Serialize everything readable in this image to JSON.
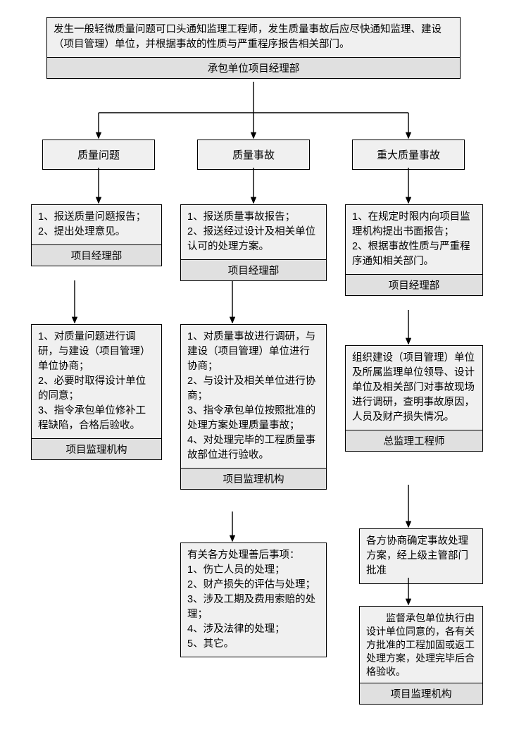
{
  "colors": {
    "box_bg": "#f0f0f0",
    "footer_bg": "#e0e0e0",
    "border": "#000000",
    "text": "#000000",
    "page_bg": "#ffffff"
  },
  "font": {
    "family": "Microsoft YaHei / SimSun",
    "size_pt": 11
  },
  "root": {
    "text": "发生一般轻微质量问题可口头通知监理工程师，发生质量事故后应尽快通知监理、建设（项目管理）单位，并根据事故的性质与严重程序报告相关部门。",
    "footer": "承包单位项目经理部"
  },
  "branches": {
    "left": {
      "title": "质量问题"
    },
    "mid": {
      "title": "质量事故"
    },
    "right": {
      "title": "重大质量事故"
    }
  },
  "left": {
    "step1": {
      "text": "1、报送质量问题报告；\n2、提出处理意见。",
      "footer": "项目经理部"
    },
    "step2": {
      "text": "1、对质量问题进行调研，与建设（项目管理）单位协商；\n2、必要时取得设计单位的同意；\n3、指令承包单位修补工程缺陷，合格后验收。",
      "footer": "项目监理机构"
    }
  },
  "mid": {
    "step1": {
      "text": "1、报送质量事故报告；\n2、报送经过设计及相关单位认可的处理方案。",
      "footer": "项目经理部"
    },
    "step2": {
      "text": "1、对质量事故进行调研，与建设（项目管理）单位进行协商；\n2、与设计及相关单位进行协商；\n3、指令承包单位按照批准的处理方案处理质量事故；\n4、对处理完毕的工程质量事故部位进行验收。",
      "footer": "项目监理机构"
    },
    "step3": {
      "text": "有关各方处理善后事项：\n1、伤亡人员的处理；\n2、财产损失的评估与处理；\n3、涉及工期及费用索赔的处理；\n4、涉及法律的处理；\n5、其它。"
    }
  },
  "right": {
    "step1": {
      "text": "1、在规定时限内向项目监理机构提出书面报告；\n2、根据事故性质与严重程序通知相关部门。",
      "footer": "项目经理部"
    },
    "step2": {
      "text": "组织建设（项目管理）单位及所属监理单位领导、设计单位及相关部门对事故现场进行调研，查明事故原因，人员及财产损失情况。",
      "footer": "总监理工程师"
    },
    "step3": {
      "text": "各方协商确定事故处理方案，经上级主管部门批准"
    },
    "step4": {
      "text": "　　监督承包单位执行由设计单位同意的，各有关方批准的工程加固或返工处理方案，处理完毕后合格验收。",
      "footer": "项目监理机构"
    }
  }
}
